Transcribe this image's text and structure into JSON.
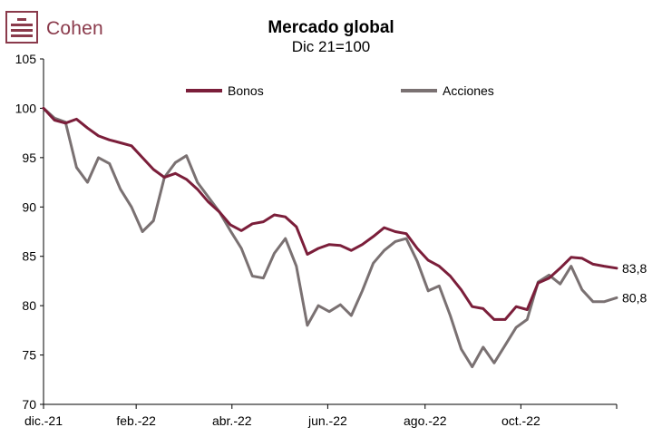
{
  "brand": {
    "name": "Cohen",
    "color": "#8a3a4b"
  },
  "chart_data": {
    "type": "line",
    "title": "Mercado global",
    "subtitle": "Dic 21=100",
    "xlabel": "",
    "ylabel": "",
    "ylim": [
      70,
      105
    ],
    "yticks": [
      "70",
      "75",
      "80",
      "85",
      "90",
      "95",
      "100",
      "105"
    ],
    "x_tick_labels": [
      "dic.-21",
      "feb.-22",
      "abr.-22",
      "jun.-22",
      "ago.-22",
      "oct.-22"
    ],
    "x_tick_dates": [
      "2021-12-31",
      "2022-02-28",
      "2022-04-30",
      "2022-06-30",
      "2022-08-31",
      "2022-10-31"
    ],
    "xlim": [
      "2021-12-31",
      "2022-12-31"
    ],
    "grid": false,
    "legend_position": "top",
    "series": [
      {
        "name": "Bonos",
        "color": "#7b1e3a",
        "end_label": "83,8",
        "points": [
          [
            "2021-12-31",
            100
          ],
          [
            "2022-01-07",
            98.8
          ],
          [
            "2022-01-14",
            98.5
          ],
          [
            "2022-01-21",
            98.9
          ],
          [
            "2022-01-28",
            98.0
          ],
          [
            "2022-02-04",
            97.2
          ],
          [
            "2022-02-11",
            96.8
          ],
          [
            "2022-02-18",
            96.5
          ],
          [
            "2022-02-25",
            96.2
          ],
          [
            "2022-03-04",
            95.0
          ],
          [
            "2022-03-11",
            93.8
          ],
          [
            "2022-03-18",
            93.0
          ],
          [
            "2022-03-25",
            93.4
          ],
          [
            "2022-04-01",
            92.8
          ],
          [
            "2022-04-08",
            91.8
          ],
          [
            "2022-04-15",
            90.5
          ],
          [
            "2022-04-22",
            89.5
          ],
          [
            "2022-04-29",
            88.2
          ],
          [
            "2022-05-06",
            87.6
          ],
          [
            "2022-05-13",
            88.3
          ],
          [
            "2022-05-20",
            88.5
          ],
          [
            "2022-05-27",
            89.2
          ],
          [
            "2022-06-03",
            89.0
          ],
          [
            "2022-06-10",
            88.0
          ],
          [
            "2022-06-17",
            85.2
          ],
          [
            "2022-06-24",
            85.8
          ],
          [
            "2022-07-01",
            86.2
          ],
          [
            "2022-07-08",
            86.1
          ],
          [
            "2022-07-15",
            85.6
          ],
          [
            "2022-07-22",
            86.2
          ],
          [
            "2022-07-29",
            87.0
          ],
          [
            "2022-08-05",
            87.9
          ],
          [
            "2022-08-12",
            87.5
          ],
          [
            "2022-08-19",
            87.3
          ],
          [
            "2022-08-26",
            85.8
          ],
          [
            "2022-09-02",
            84.6
          ],
          [
            "2022-09-09",
            84.0
          ],
          [
            "2022-09-16",
            83.0
          ],
          [
            "2022-09-23",
            81.6
          ],
          [
            "2022-09-30",
            79.9
          ],
          [
            "2022-10-07",
            79.7
          ],
          [
            "2022-10-14",
            78.6
          ],
          [
            "2022-10-21",
            78.6
          ],
          [
            "2022-10-28",
            79.9
          ],
          [
            "2022-11-04",
            79.6
          ],
          [
            "2022-11-11",
            82.3
          ],
          [
            "2022-11-18",
            82.8
          ],
          [
            "2022-11-25",
            83.8
          ],
          [
            "2022-12-02",
            84.9
          ],
          [
            "2022-12-09",
            84.8
          ],
          [
            "2022-12-16",
            84.2
          ],
          [
            "2022-12-23",
            84.0
          ],
          [
            "2022-12-31",
            83.8
          ]
        ]
      },
      {
        "name": "Acciones",
        "color": "#7a7172",
        "end_label": "80,8",
        "points": [
          [
            "2021-12-31",
            100
          ],
          [
            "2022-01-07",
            99.0
          ],
          [
            "2022-01-14",
            98.6
          ],
          [
            "2022-01-21",
            94.0
          ],
          [
            "2022-01-28",
            92.5
          ],
          [
            "2022-02-04",
            95.0
          ],
          [
            "2022-02-11",
            94.4
          ],
          [
            "2022-02-18",
            91.8
          ],
          [
            "2022-02-25",
            90.0
          ],
          [
            "2022-03-04",
            87.5
          ],
          [
            "2022-03-11",
            88.6
          ],
          [
            "2022-03-18",
            93.0
          ],
          [
            "2022-03-25",
            94.5
          ],
          [
            "2022-04-01",
            95.2
          ],
          [
            "2022-04-08",
            92.5
          ],
          [
            "2022-04-15",
            91.0
          ],
          [
            "2022-04-22",
            89.5
          ],
          [
            "2022-04-29",
            87.6
          ],
          [
            "2022-05-06",
            85.8
          ],
          [
            "2022-05-13",
            83.0
          ],
          [
            "2022-05-20",
            82.8
          ],
          [
            "2022-05-27",
            85.3
          ],
          [
            "2022-06-03",
            86.8
          ],
          [
            "2022-06-10",
            84.0
          ],
          [
            "2022-06-17",
            78.0
          ],
          [
            "2022-06-24",
            80.0
          ],
          [
            "2022-07-01",
            79.4
          ],
          [
            "2022-07-08",
            80.1
          ],
          [
            "2022-07-15",
            79.0
          ],
          [
            "2022-07-22",
            81.5
          ],
          [
            "2022-07-29",
            84.3
          ],
          [
            "2022-08-05",
            85.6
          ],
          [
            "2022-08-12",
            86.5
          ],
          [
            "2022-08-19",
            86.8
          ],
          [
            "2022-08-26",
            84.5
          ],
          [
            "2022-09-02",
            81.5
          ],
          [
            "2022-09-09",
            82.0
          ],
          [
            "2022-09-16",
            79.0
          ],
          [
            "2022-09-23",
            75.6
          ],
          [
            "2022-09-30",
            73.8
          ],
          [
            "2022-10-07",
            75.8
          ],
          [
            "2022-10-14",
            74.2
          ],
          [
            "2022-10-21",
            76.0
          ],
          [
            "2022-10-28",
            77.8
          ],
          [
            "2022-11-04",
            78.6
          ],
          [
            "2022-11-11",
            82.4
          ],
          [
            "2022-11-18",
            83.1
          ],
          [
            "2022-11-25",
            82.2
          ],
          [
            "2022-12-02",
            84.0
          ],
          [
            "2022-12-09",
            81.6
          ],
          [
            "2022-12-16",
            80.4
          ],
          [
            "2022-12-23",
            80.4
          ],
          [
            "2022-12-31",
            80.8
          ]
        ]
      }
    ]
  }
}
